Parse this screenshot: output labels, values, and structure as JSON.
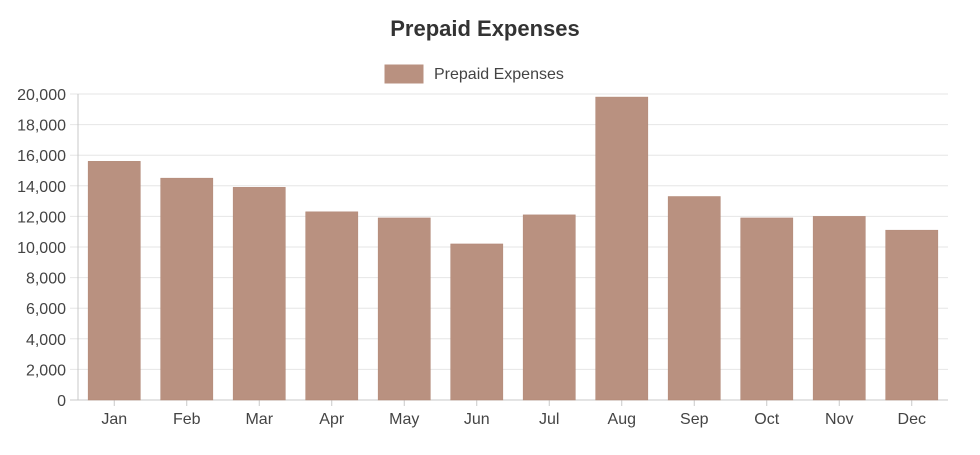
{
  "chart_data": {
    "type": "bar",
    "title": "Prepaid Expenses",
    "xlabel": "",
    "ylabel": "",
    "categories": [
      "Jan",
      "Feb",
      "Mar",
      "Apr",
      "May",
      "Jun",
      "Jul",
      "Aug",
      "Sep",
      "Oct",
      "Nov",
      "Dec"
    ],
    "series": [
      {
        "name": "Prepaid Expenses",
        "color": "#b99180",
        "values": [
          15600,
          14500,
          13900,
          12300,
          11900,
          10200,
          12100,
          19800,
          13300,
          11900,
          12000,
          11100
        ]
      }
    ],
    "ylim": [
      0,
      20000
    ],
    "yticks": [
      0,
      2000,
      4000,
      6000,
      8000,
      10000,
      12000,
      14000,
      16000,
      18000,
      20000
    ],
    "ytick_labels": [
      "0",
      "2,000",
      "4,000",
      "6,000",
      "8,000",
      "10,000",
      "12,000",
      "14,000",
      "16,000",
      "18,000",
      "20,000"
    ],
    "grid": true,
    "legend_position": "top-center"
  }
}
